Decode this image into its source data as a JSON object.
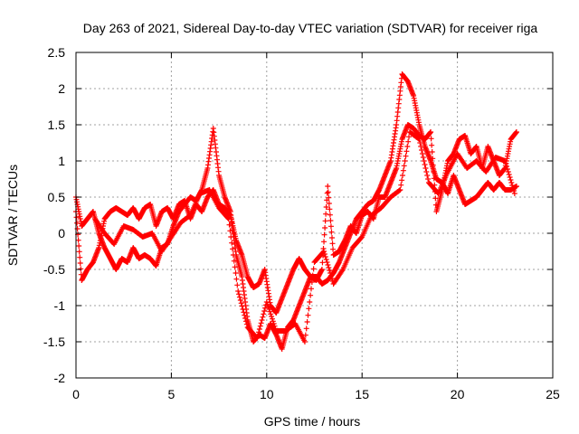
{
  "chart_data": {
    "type": "scatter",
    "title": "Day 263 of 2021, Sidereal Day-to-day VTEC variation (SDTVAR) for receiver riga",
    "xlabel": "GPS time / hours",
    "ylabel": "SDTVAR / TECUs",
    "xlim": [
      0,
      25
    ],
    "ylim": [
      -2,
      2.5
    ],
    "xticks": [
      0,
      5,
      10,
      15,
      20,
      25
    ],
    "xtick_labels": [
      "0",
      "5",
      "10",
      "15",
      "20",
      "25"
    ],
    "yticks": [
      -2,
      -1.5,
      -1,
      -0.5,
      0,
      0.5,
      1,
      1.5,
      2,
      2.5
    ],
    "ytick_labels": [
      "-2",
      "-1.5",
      "-1",
      "-0.5",
      "0",
      "0.5",
      "1",
      "1.5",
      "2",
      "2.5"
    ],
    "grid": true,
    "marker": "+",
    "series_color": "#ff0000",
    "series": [
      {
        "name": "SDTVAR",
        "trace_a": {
          "x": [
            0.0,
            0.3,
            0.6,
            0.9,
            1.2,
            1.5,
            1.8,
            2.1,
            2.4,
            2.7,
            3.0,
            3.3,
            3.6,
            3.9,
            4.2,
            4.5,
            4.8,
            5.1,
            5.4,
            5.7,
            6.0,
            6.3,
            6.6,
            6.9,
            7.2,
            7.5,
            7.8,
            8.1,
            8.4,
            8.7,
            9.0,
            9.3,
            9.6,
            9.9,
            10.2,
            10.5,
            10.8,
            11.1,
            11.4,
            11.7,
            12.0,
            12.3,
            12.6,
            12.9,
            13.2,
            13.5,
            13.8,
            14.1,
            14.4,
            14.7,
            15.0,
            15.3,
            15.6,
            15.9,
            16.2,
            16.5,
            16.8,
            17.1,
            17.4,
            17.7,
            18.0,
            18.3,
            18.6,
            18.9,
            19.2,
            19.5,
            19.8,
            20.1,
            20.4,
            20.7,
            21.0,
            21.3,
            21.6,
            21.9,
            22.2,
            22.5,
            22.8,
            23.1
          ],
          "y": [
            0.5,
            0.1,
            0.2,
            0.3,
            0.0,
            -0.2,
            -0.35,
            -0.5,
            -0.35,
            -0.4,
            -0.2,
            -0.35,
            -0.3,
            -0.35,
            -0.45,
            -0.2,
            -0.15,
            0.1,
            0.3,
            0.4,
            0.5,
            0.45,
            0.6,
            0.9,
            1.45,
            0.8,
            0.5,
            0.3,
            -0.3,
            -0.6,
            -1.2,
            -1.5,
            -1.4,
            -1.45,
            -1.25,
            -1.4,
            -1.6,
            -1.3,
            -1.2,
            -1.0,
            -0.8,
            -0.6,
            -0.6,
            -0.7,
            -0.65,
            -0.55,
            -0.4,
            -0.2,
            0.0,
            0.2,
            0.3,
            0.4,
            0.45,
            0.6,
            0.8,
            1.0,
            1.5,
            2.2,
            2.1,
            1.9,
            1.5,
            1.2,
            1.0,
            0.75,
            0.7,
            0.55,
            0.8,
            0.6,
            0.4,
            0.45,
            0.5,
            0.6,
            0.7,
            0.6,
            0.7,
            0.6,
            0.6,
            0.65
          ]
        },
        "trace_b": {
          "x": [
            0.0,
            0.3,
            0.6,
            0.9,
            1.2,
            1.5,
            1.8,
            2.1,
            2.4,
            2.7,
            3.0,
            3.3,
            3.6,
            3.9,
            4.2,
            4.5,
            4.8,
            5.1,
            5.4,
            5.7,
            6.0,
            6.3,
            6.6,
            6.9,
            7.2,
            7.5,
            7.8,
            8.1,
            8.4,
            8.7,
            9.0,
            9.3,
            9.6,
            9.9,
            10.2,
            10.5,
            10.8,
            11.1,
            11.4,
            11.7,
            12.0,
            12.3,
            12.6,
            12.9,
            13.2,
            13.5,
            13.8,
            14.1,
            14.4,
            14.7,
            15.0,
            15.3,
            15.6,
            15.9,
            16.2,
            16.5,
            16.8,
            17.1,
            17.4,
            17.7,
            18.0,
            18.3,
            18.6,
            18.9,
            19.2,
            19.5,
            19.8,
            20.1,
            20.4,
            20.7,
            21.0,
            21.3,
            21.6,
            21.9,
            22.2,
            22.5,
            22.8,
            23.1
          ],
          "y": [
            0.3,
            -0.65,
            -0.5,
            -0.4,
            -0.2,
            0.2,
            0.3,
            0.35,
            0.3,
            0.25,
            0.35,
            0.2,
            0.35,
            0.4,
            0.1,
            0.3,
            0.35,
            0.2,
            0.4,
            0.45,
            0.2,
            0.4,
            0.3,
            0.5,
            0.6,
            0.4,
            0.35,
            0.25,
            -0.1,
            -0.3,
            -0.6,
            -0.75,
            -0.7,
            -0.5,
            -1.0,
            -1.1,
            -0.9,
            -0.7,
            -0.5,
            -0.35,
            -0.5,
            -0.6,
            -0.65,
            -0.5,
            0.65,
            -0.3,
            -0.25,
            -0.1,
            0.1,
            0.0,
            0.25,
            0.3,
            0.2,
            0.5,
            0.5,
            0.7,
            0.9,
            1.3,
            1.5,
            1.45,
            1.35,
            1.3,
            1.4,
            0.3,
            0.6,
            1.0,
            1.1,
            1.3,
            1.35,
            1.1,
            1.2,
            0.9,
            1.2,
            1.0,
            0.8,
            0.9,
            1.3,
            1.4
          ]
        },
        "trace_c": {
          "x": [
            1.0,
            1.5,
            2.0,
            2.5,
            3.0,
            3.5,
            4.0,
            4.5,
            5.0,
            5.5,
            6.0,
            6.5,
            7.0,
            7.5,
            8.0,
            8.5,
            9.0,
            9.5,
            10.0,
            10.5,
            11.0,
            11.5,
            12.0,
            12.5,
            13.0,
            13.5,
            14.0,
            14.5,
            15.0,
            15.5,
            16.0,
            16.5,
            17.0,
            17.5,
            18.0,
            18.5,
            19.0,
            19.5,
            20.0,
            20.5,
            21.0,
            21.5,
            22.0,
            22.5,
            23.0
          ],
          "y": [
            0.2,
            0.0,
            -0.15,
            0.1,
            0.05,
            -0.05,
            0.0,
            -0.25,
            -0.05,
            0.15,
            0.25,
            0.55,
            0.6,
            0.35,
            0.2,
            -0.8,
            -1.3,
            -1.45,
            -0.95,
            -1.35,
            -1.35,
            -1.25,
            -1.5,
            -0.4,
            -0.25,
            -0.7,
            -0.5,
            -0.2,
            -0.05,
            0.25,
            0.35,
            0.5,
            0.6,
            1.4,
            1.3,
            0.7,
            0.55,
            0.85,
            1.1,
            0.9,
            1.0,
            0.85,
            1.05,
            1.0,
            0.55
          ]
        }
      }
    ]
  }
}
